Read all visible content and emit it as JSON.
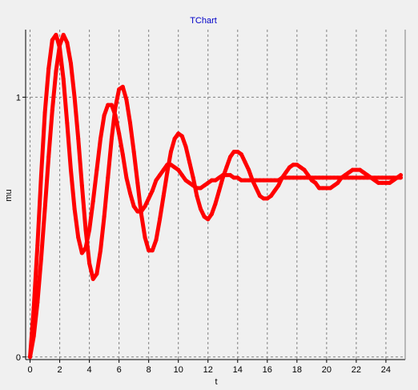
{
  "chart_data": {
    "type": "line",
    "title": "TChart",
    "xlabel": "t",
    "ylabel": "mu",
    "xlim": [
      -0.3,
      25.3
    ],
    "ylim": [
      -0.01,
      1.26
    ],
    "xticks": [
      0,
      2,
      4,
      6,
      8,
      10,
      12,
      14,
      16,
      18,
      20,
      22,
      24
    ],
    "yticks": [
      0,
      1
    ],
    "grid": true,
    "legend": "none",
    "series": [
      {
        "color": "#ff0000",
        "x": [
          0,
          0.25,
          0.5,
          0.75,
          1.0,
          1.25,
          1.5,
          1.75,
          2.0,
          2.25,
          2.5,
          2.75,
          3.0,
          3.25,
          3.5,
          3.75,
          4.0,
          4.25,
          4.5,
          4.75,
          5.0,
          5.25,
          5.5,
          5.75,
          6.0,
          6.25,
          6.5,
          6.75,
          7.0,
          7.25,
          7.5,
          7.75,
          8.0,
          8.25,
          8.5,
          8.75,
          9.0,
          9.25,
          9.5,
          9.75,
          10.0,
          10.25,
          10.5,
          10.75,
          11.0,
          11.25,
          11.5,
          11.75,
          12.0,
          12.25,
          12.5,
          12.75,
          13.0,
          13.25,
          13.5,
          13.75,
          14.0,
          14.25,
          14.5,
          14.75,
          15.0,
          15.25,
          15.5,
          15.75,
          16.0,
          16.25,
          16.5,
          16.75,
          17.0,
          17.25,
          17.5,
          17.75,
          18.0,
          18.25,
          18.5,
          18.75,
          19.0,
          19.25,
          19.5,
          19.75,
          20.0,
          20.25,
          20.5,
          20.75,
          21.0,
          21.25,
          21.5,
          21.75,
          22.0,
          22.25,
          22.5,
          22.75,
          23.0,
          23.25,
          23.5,
          23.75,
          24.0,
          24.25,
          24.5,
          24.75,
          25.0
        ],
        "y": [
          0.0,
          0.19,
          0.43,
          0.7,
          0.94,
          1.11,
          1.22,
          1.24,
          1.19,
          1.07,
          0.9,
          0.72,
          0.57,
          0.46,
          0.4,
          0.42,
          0.49,
          0.6,
          0.72,
          0.84,
          0.93,
          0.97,
          0.97,
          0.93,
          0.86,
          0.78,
          0.69,
          0.63,
          0.58,
          0.56,
          0.56,
          0.58,
          0.61,
          0.64,
          0.68,
          0.7,
          0.72,
          0.74,
          0.74,
          0.73,
          0.72,
          0.7,
          0.68,
          0.67,
          0.66,
          0.65,
          0.65,
          0.66,
          0.67,
          0.68,
          0.68,
          0.69,
          0.7,
          0.7,
          0.7,
          0.69,
          0.69,
          0.68,
          0.68,
          0.68,
          0.68,
          0.68,
          0.68,
          0.68,
          0.68,
          0.68,
          0.68,
          0.68,
          0.69,
          0.69,
          0.69,
          0.69,
          0.69,
          0.69,
          0.69,
          0.69,
          0.69,
          0.69,
          0.69,
          0.69,
          0.69,
          0.69,
          0.69,
          0.69,
          0.69,
          0.69,
          0.69,
          0.69,
          0.69,
          0.69,
          0.69,
          0.69,
          0.69,
          0.69,
          0.69,
          0.69,
          0.69,
          0.69,
          0.69,
          0.69,
          0.69
        ]
      },
      {
        "color": "#ff0000",
        "x": [
          0,
          0.25,
          0.5,
          0.75,
          1.0,
          1.25,
          1.5,
          1.75,
          2.0,
          2.25,
          2.5,
          2.75,
          3.0,
          3.25,
          3.5,
          3.75,
          4.0,
          4.25,
          4.5,
          4.75,
          5.0,
          5.25,
          5.5,
          5.75,
          6.0,
          6.25,
          6.5,
          6.75,
          7.0,
          7.25,
          7.5,
          7.75,
          8.0,
          8.25,
          8.5,
          8.75,
          9.0,
          9.25,
          9.5,
          9.75,
          10.0,
          10.25,
          10.5,
          10.75,
          11.0,
          11.25,
          11.5,
          11.75,
          12.0,
          12.25,
          12.5,
          12.75,
          13.0,
          13.25,
          13.5,
          13.75,
          14.0,
          14.25,
          14.5,
          14.75,
          15.0,
          15.25,
          15.5,
          15.75,
          16.0,
          16.25,
          16.5,
          16.75,
          17.0,
          17.25,
          17.5,
          17.75,
          18.0,
          18.25,
          18.5,
          18.75,
          19.0,
          19.25,
          19.5,
          19.75,
          20.0,
          20.25,
          20.5,
          20.75,
          21.0,
          21.25,
          21.5,
          21.75,
          22.0,
          22.25,
          22.5,
          22.75,
          23.0,
          23.25,
          23.5,
          23.75,
          24.0,
          24.25,
          24.5,
          24.75,
          25.0
        ],
        "y": [
          0.0,
          0.08,
          0.21,
          0.38,
          0.57,
          0.77,
          0.95,
          1.1,
          1.2,
          1.24,
          1.21,
          1.13,
          1.0,
          0.84,
          0.66,
          0.49,
          0.36,
          0.3,
          0.32,
          0.41,
          0.54,
          0.69,
          0.84,
          0.96,
          1.03,
          1.04,
          0.99,
          0.9,
          0.79,
          0.67,
          0.55,
          0.46,
          0.41,
          0.41,
          0.45,
          0.53,
          0.62,
          0.71,
          0.79,
          0.84,
          0.86,
          0.85,
          0.81,
          0.75,
          0.69,
          0.62,
          0.57,
          0.54,
          0.53,
          0.55,
          0.59,
          0.64,
          0.69,
          0.73,
          0.77,
          0.79,
          0.79,
          0.78,
          0.75,
          0.72,
          0.68,
          0.65,
          0.62,
          0.61,
          0.61,
          0.62,
          0.64,
          0.66,
          0.69,
          0.71,
          0.73,
          0.74,
          0.74,
          0.73,
          0.72,
          0.7,
          0.68,
          0.67,
          0.65,
          0.65,
          0.65,
          0.65,
          0.66,
          0.67,
          0.69,
          0.7,
          0.71,
          0.72,
          0.72,
          0.72,
          0.71,
          0.7,
          0.69,
          0.68,
          0.67,
          0.67,
          0.67,
          0.67,
          0.68,
          0.69,
          0.7
        ]
      }
    ]
  }
}
